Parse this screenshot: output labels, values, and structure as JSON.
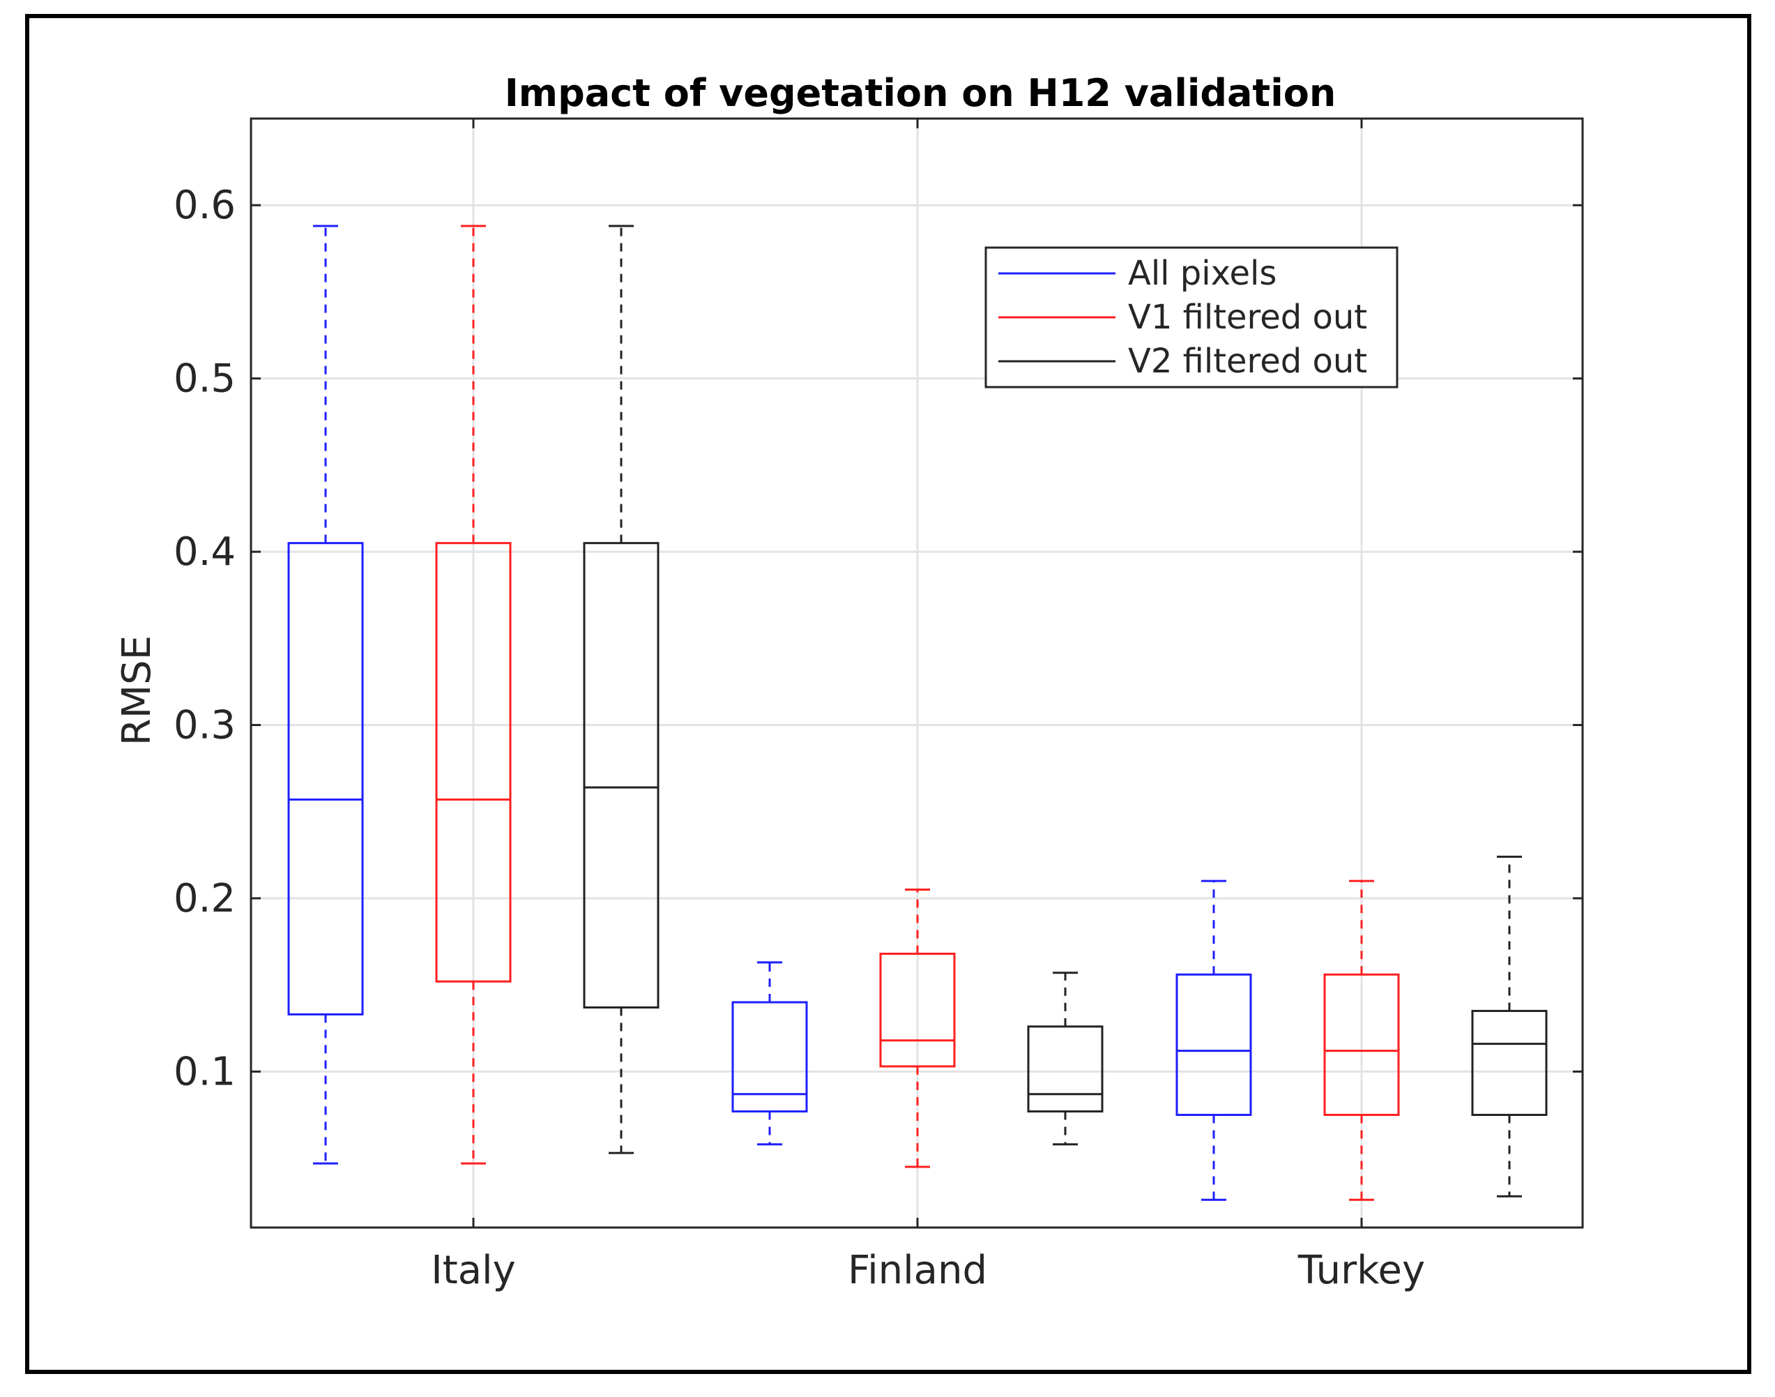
{
  "chart_data": {
    "type": "boxplot",
    "title": "Impact of vegetation on H12 validation",
    "xlabel": "",
    "ylabel": "RMSE",
    "ylim": [
      0.01,
      0.65
    ],
    "yticks": [
      0.1,
      0.2,
      0.3,
      0.4,
      0.5,
      0.6
    ],
    "ytick_labels": [
      "0.1",
      "0.2",
      "0.3",
      "0.4",
      "0.5",
      "0.6"
    ],
    "categories": [
      "Italy",
      "Finland",
      "Turkey"
    ],
    "grid": true,
    "legend_position": "top-right",
    "series": [
      {
        "name": "All pixels",
        "color": "#1f1fff",
        "boxes": [
          {
            "category": "Italy",
            "whisker_low": 0.047,
            "q1": 0.133,
            "median": 0.257,
            "q3": 0.405,
            "whisker_high": 0.588
          },
          {
            "category": "Finland",
            "whisker_low": 0.058,
            "q1": 0.077,
            "median": 0.087,
            "q3": 0.14,
            "whisker_high": 0.163
          },
          {
            "category": "Turkey",
            "whisker_low": 0.026,
            "q1": 0.075,
            "median": 0.112,
            "q3": 0.156,
            "whisker_high": 0.21
          }
        ]
      },
      {
        "name": "V1 filtered out",
        "color": "#ff1f1f",
        "boxes": [
          {
            "category": "Italy",
            "whisker_low": 0.047,
            "q1": 0.152,
            "median": 0.257,
            "q3": 0.405,
            "whisker_high": 0.588
          },
          {
            "category": "Finland",
            "whisker_low": 0.045,
            "q1": 0.103,
            "median": 0.118,
            "q3": 0.168,
            "whisker_high": 0.205
          },
          {
            "category": "Turkey",
            "whisker_low": 0.026,
            "q1": 0.075,
            "median": 0.112,
            "q3": 0.156,
            "whisker_high": 0.21
          }
        ]
      },
      {
        "name": "V2 filtered out",
        "color": "#222222",
        "boxes": [
          {
            "category": "Italy",
            "whisker_low": 0.053,
            "q1": 0.137,
            "median": 0.264,
            "q3": 0.405,
            "whisker_high": 0.588
          },
          {
            "category": "Finland",
            "whisker_low": 0.058,
            "q1": 0.077,
            "median": 0.087,
            "q3": 0.126,
            "whisker_high": 0.157
          },
          {
            "category": "Turkey",
            "whisker_low": 0.028,
            "q1": 0.075,
            "median": 0.116,
            "q3": 0.135,
            "whisker_high": 0.224
          }
        ]
      }
    ]
  }
}
